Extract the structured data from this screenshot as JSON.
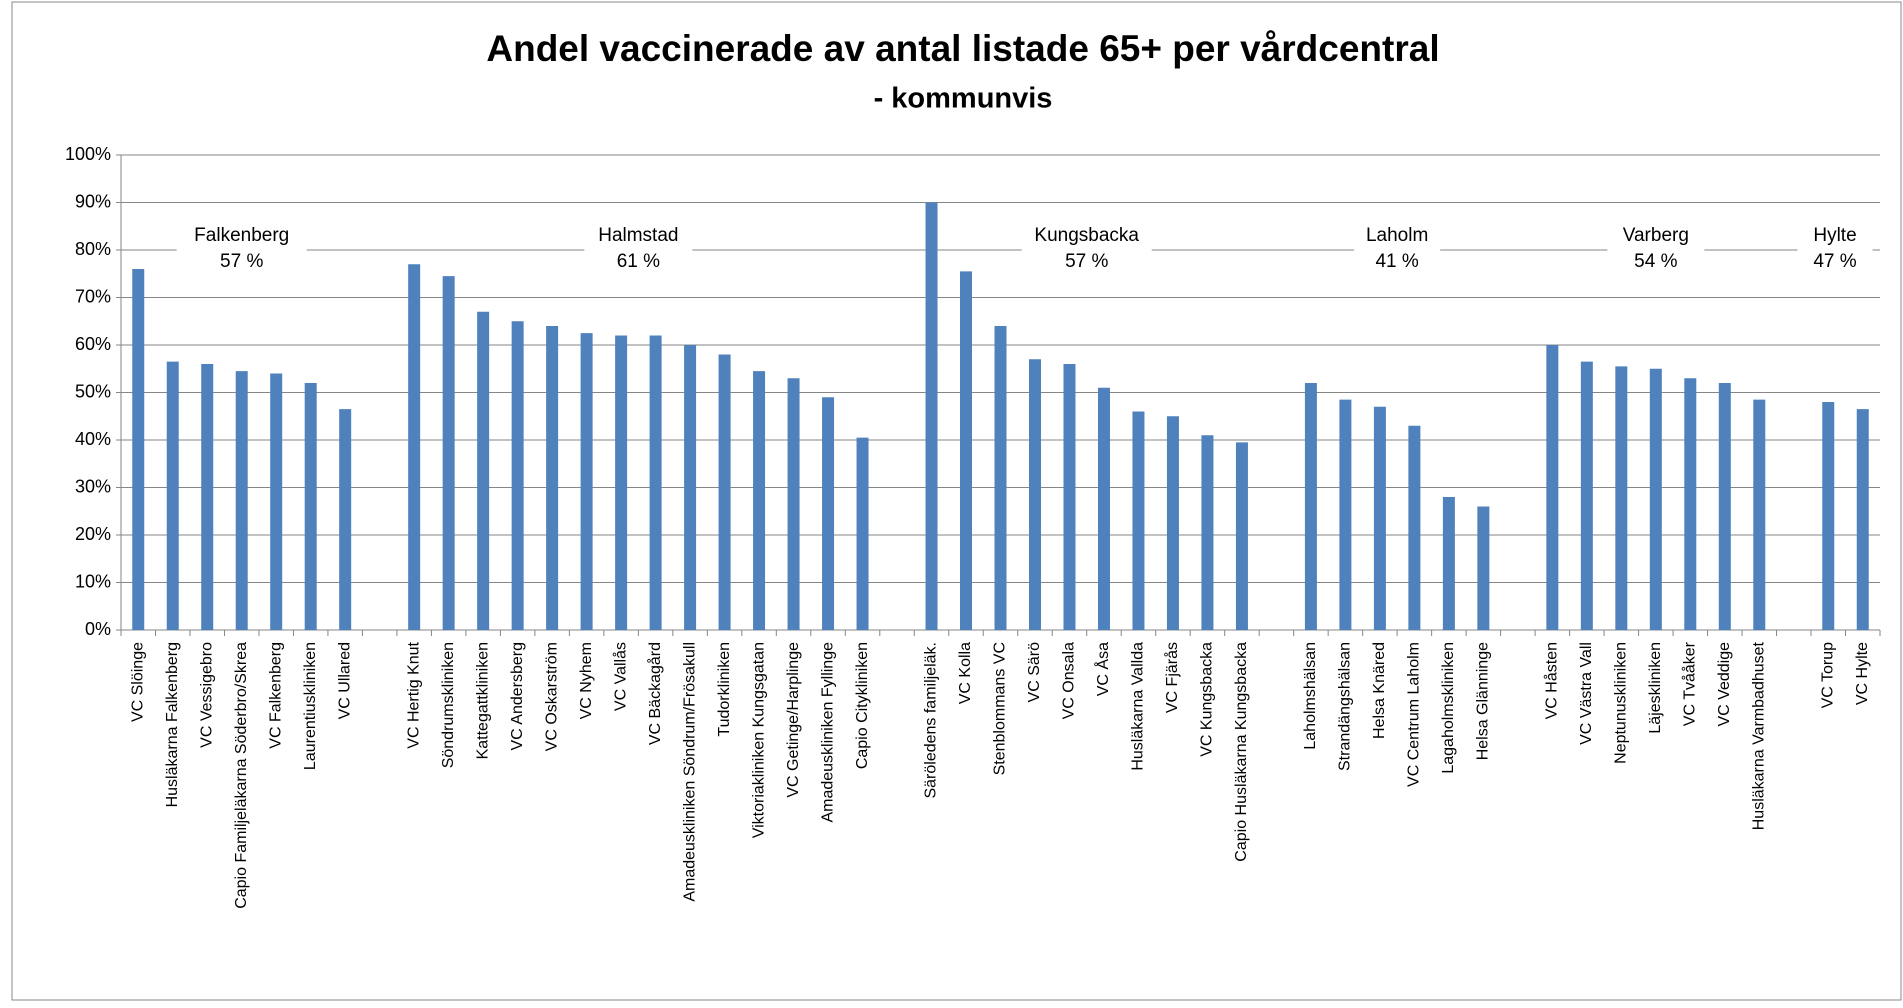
{
  "chart_data": {
    "type": "bar",
    "title": "Andel vaccinerade av antal listade 65+ per vårdcentral",
    "subtitle": "- kommunvis",
    "categories": [
      "VC Slöinge",
      "Husläkarna Falkenberg",
      "VC Vessigebro",
      "Capio Familjeläkarna Söderbro/Skrea",
      "VC Falkenberg",
      "Laurentiuskliniken",
      "VC Ullared",
      null,
      "VC Hertig Knut",
      "Söndrumskliniken",
      "Kattegattkliniken",
      "VC Andersberg",
      "VC Oskarström",
      "VC Nyhem",
      "VC Vallås",
      "VC Bäckagård",
      "Amadeuskliniken Söndrum/Frösakull",
      "Tudorkliniken",
      "Viktoriakliniken Kungsgatan",
      "VC Getinge/Harplinge",
      "Amadeuskliniken Fyllinge",
      "Capio Citykliniken",
      null,
      "Säröledens familjeläk.",
      "VC Kolla",
      "Stenblommans VC",
      "VC Särö",
      "VC Onsala",
      "VC Åsa",
      "Husläkarna Vallda",
      "VC Fjärås",
      "VC Kungsbacka",
      "Capio Husläkarna Kungsbacka",
      null,
      "Laholmshälsan",
      "Strandängshälsan",
      "Helsa Knäred",
      "VC Centrum Laholm",
      "Lagaholmskliniken",
      "Helsa Glänninge",
      null,
      "VC Håsten",
      "VC Västra Vall",
      "Neptunuskliniken",
      "Läjeskliniken",
      "VC Tvååker",
      "VC Veddige",
      "Husläkarna Varmbadhuset",
      null,
      "VC Torup",
      "VC Hylte"
    ],
    "values": [
      76,
      56.5,
      56,
      54.5,
      54,
      52,
      46.5,
      null,
      77,
      74.5,
      67,
      65,
      64,
      62.5,
      62,
      62,
      60,
      58,
      54.5,
      53,
      49,
      40.5,
      null,
      90,
      75.5,
      64,
      57,
      56,
      51,
      46,
      45,
      41,
      39.5,
      null,
      52,
      48.5,
      47,
      43,
      28,
      26,
      null,
      60,
      56.5,
      55.5,
      55,
      53,
      52,
      48.5,
      null,
      48,
      46.5
    ],
    "color": "#4f81bd",
    "groups": [
      {
        "name": "Falkenberg",
        "label": "57 %"
      },
      {
        "name": "Halmstad",
        "label": "61 %"
      },
      {
        "name": "Kungsbacka",
        "label": "57 %"
      },
      {
        "name": "Laholm",
        "label": "41 %"
      },
      {
        "name": "Varberg",
        "label": "54 %"
      },
      {
        "name": "Hylte",
        "label": "47 %"
      }
    ],
    "ylim": [
      0,
      100
    ],
    "yticks": [
      {
        "value": 0,
        "label": "0%"
      },
      {
        "value": 10,
        "label": "10%"
      },
      {
        "value": 20,
        "label": "20%"
      },
      {
        "value": 30,
        "label": "30%"
      },
      {
        "value": 40,
        "label": "40%"
      },
      {
        "value": 50,
        "label": "50%"
      },
      {
        "value": 60,
        "label": "60%"
      },
      {
        "value": 70,
        "label": "70%"
      },
      {
        "value": 80,
        "label": "80%"
      },
      {
        "value": 90,
        "label": "90%"
      },
      {
        "value": 100,
        "label": "100%"
      }
    ],
    "grid": true
  }
}
